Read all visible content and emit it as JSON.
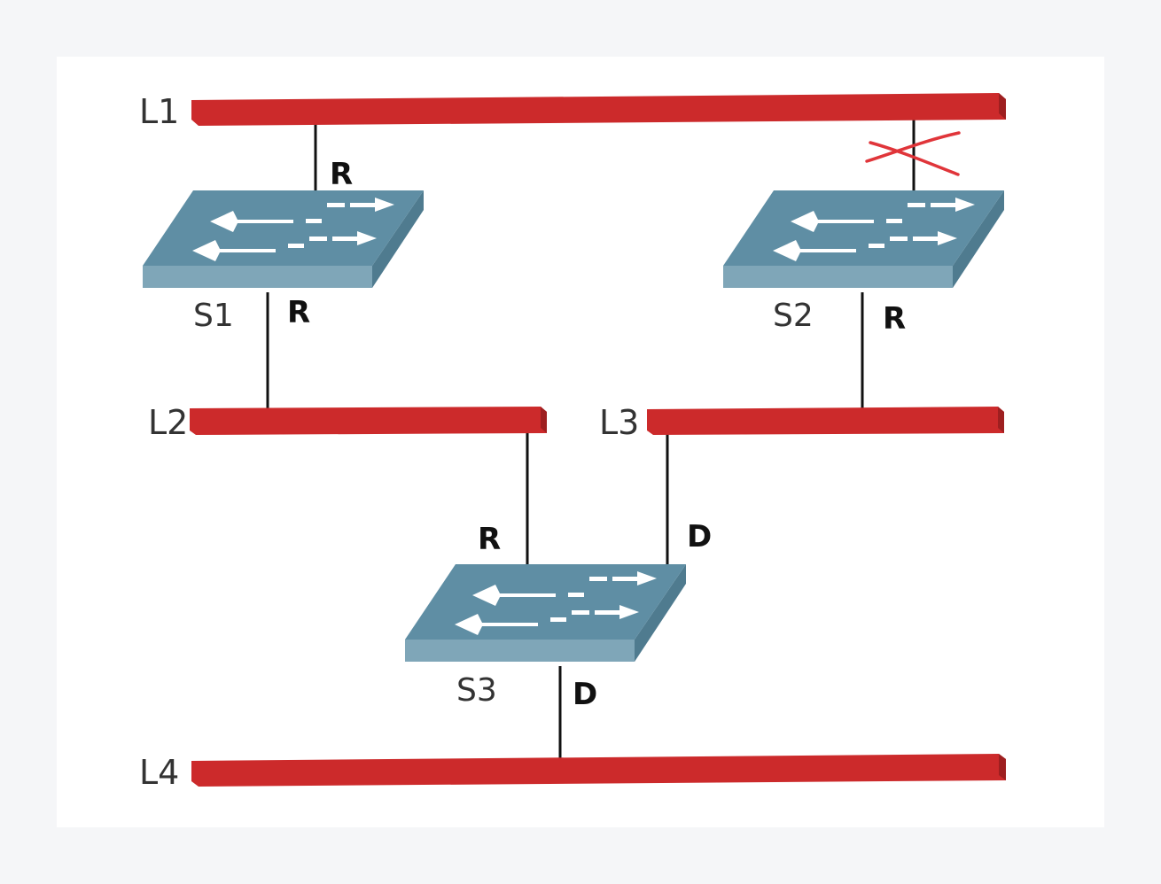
{
  "colors": {
    "background": "#f5f6f8",
    "canvas": "#ffffff",
    "segment": "#cc2a2b",
    "switch_top": "#5f8ea4",
    "switch_side": "#7fa6b8",
    "link": "#111111",
    "blocked_mark": "#e0353a",
    "label": "#333333"
  },
  "segments": {
    "l1": "L1",
    "l2": "L2",
    "l3": "L3",
    "l4": "L4"
  },
  "switches": {
    "s1": "S1",
    "s2": "S2",
    "s3": "S3"
  },
  "ports": {
    "s1_up": "R",
    "s1_down": "R",
    "s2_down": "R",
    "s3_left": "R",
    "s3_right": "D",
    "s3_down": "D"
  },
  "icons": {
    "switch": "switch-icon",
    "blocked": "blocked-port-x-icon"
  }
}
